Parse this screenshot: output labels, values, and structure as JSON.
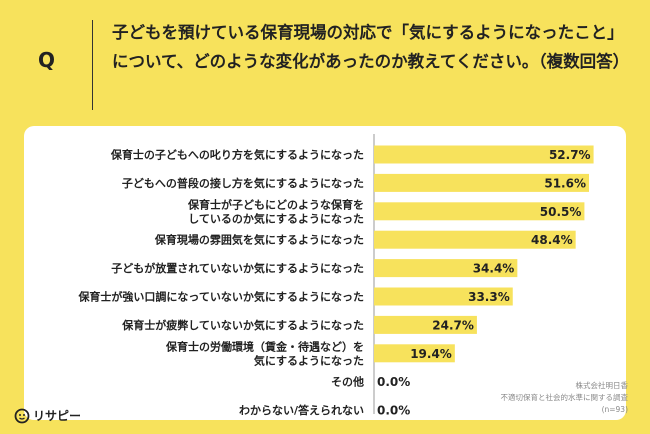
{
  "header": {
    "q_label": "Q",
    "question": "子どもを預けている保育現場の対応で「気にするようになったこと」について、どのような変化があったのか教えてください。（複数回答）"
  },
  "chart_data": {
    "type": "bar",
    "orientation": "horizontal",
    "categories": [
      "保育士の子どもへの叱り方を気にするようになった",
      "子どもへの普段の接し方を気にするようになった",
      "保育士が子どもにどのような保育を|しているのか気にするようになった",
      "保育現場の雰囲気を気にするようになった",
      "子どもが放置されていないか気にするようになった",
      "保育士が強い口調になっていないか気にするようになった",
      "保育士が疲弊していないか気にするようになった",
      "保育士の労働環境（賃金・待遇など）を|気にするようになった",
      "その他",
      "わからない/答えられない"
    ],
    "values": [
      52.7,
      51.6,
      50.5,
      48.4,
      34.4,
      33.3,
      24.7,
      19.4,
      0.0,
      0.0
    ],
    "value_labels": [
      "52.7%",
      "51.6%",
      "50.5%",
      "48.4%",
      "34.4%",
      "33.3%",
      "24.7%",
      "19.4%",
      "0.0%",
      "0.0%"
    ],
    "xlim": [
      0,
      60
    ],
    "bar_color": "#f7e25c",
    "grid": false
  },
  "footer": {
    "logo_text": "リサピー",
    "source_lines": [
      "株式会社明日香",
      "不適切保育と社会的水準に関する調査",
      "(n=93)"
    ]
  }
}
